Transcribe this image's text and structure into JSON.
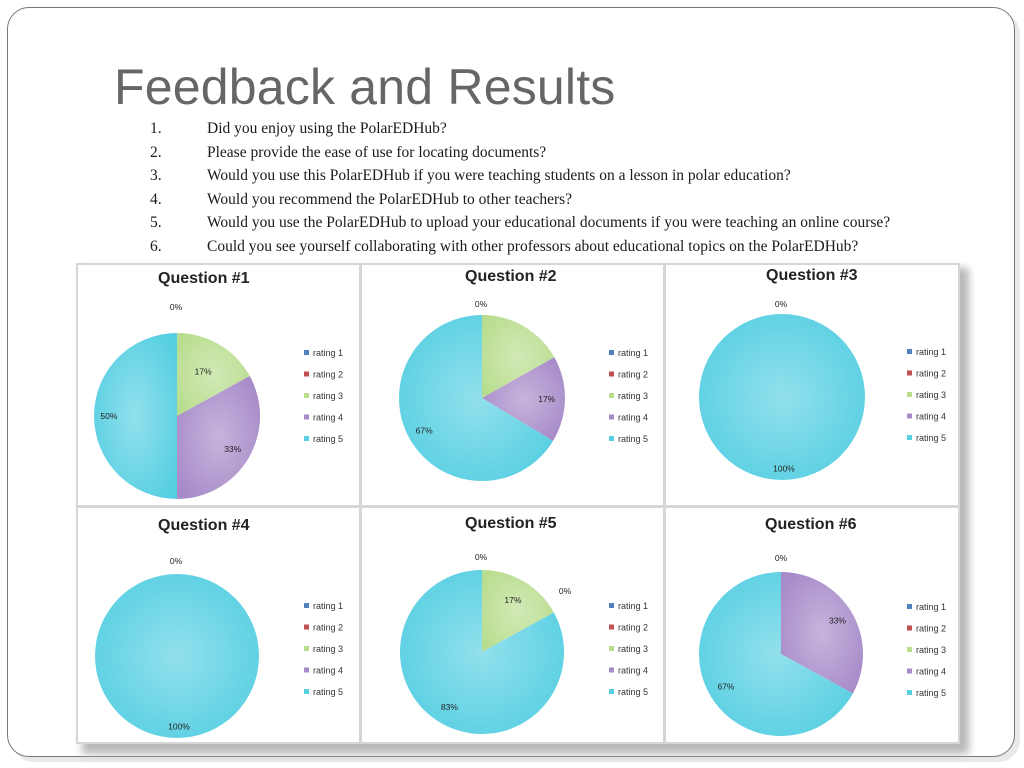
{
  "slide": {
    "title": "Feedback and Results",
    "questions": [
      {
        "num": "1.",
        "text": "Did you enjoy using the PolarEDHub?"
      },
      {
        "num": "2.",
        "text": "Please provide the ease of use for locating documents?"
      },
      {
        "num": "3.",
        "text": "Would you use this PolarEDHub if you were teaching students on a lesson in polar education?"
      },
      {
        "num": "4.",
        "text": "Would you recommend the PolarEDHub to other teachers?"
      },
      {
        "num": "5.",
        "text": "Would you use the PolarEDHub to upload your educational documents if you were teaching an online course?"
      },
      {
        "num": "6.",
        "text": "Could you see yourself collaborating with other professors about educational topics on the PolarEDHub?"
      }
    ]
  },
  "colors": {
    "rating 1": "#4f81bd",
    "rating 2": "#c0504d",
    "rating 3": "#b9dd8f",
    "rating 4": "#a78bc9",
    "rating 5": "#57cfe2"
  },
  "chart_data": [
    {
      "type": "pie",
      "title": "Question #1",
      "categories": [
        "rating 1",
        "rating 2",
        "rating 3",
        "rating 4",
        "rating 5"
      ],
      "values": [
        0,
        0,
        17,
        33,
        50
      ],
      "labels": [
        "",
        "0%",
        "17%",
        "33%",
        "50%"
      ],
      "legend": "right"
    },
    {
      "type": "pie",
      "title": "Question #2",
      "categories": [
        "rating 1",
        "rating 2",
        "rating 3",
        "rating 4",
        "rating 5"
      ],
      "values": [
        0,
        0,
        17,
        17,
        67
      ],
      "labels": [
        "",
        "0%",
        "",
        "17%",
        "67%"
      ],
      "legend": "right"
    },
    {
      "type": "pie",
      "title": "Question #3",
      "categories": [
        "rating 1",
        "rating 2",
        "rating 3",
        "rating 4",
        "rating 5"
      ],
      "values": [
        0,
        0,
        0,
        0,
        100
      ],
      "labels": [
        "",
        "0%",
        "",
        "",
        "100%"
      ],
      "legend": "right"
    },
    {
      "type": "pie",
      "title": "Question #4",
      "categories": [
        "rating 1",
        "rating 2",
        "rating 3",
        "rating 4",
        "rating 5"
      ],
      "values": [
        0,
        0,
        0,
        0,
        100
      ],
      "labels": [
        "",
        "0%",
        "",
        "",
        "100%"
      ],
      "legend": "right"
    },
    {
      "type": "pie",
      "title": "Question #5",
      "categories": [
        "rating 1",
        "rating 2",
        "rating 3",
        "rating 4",
        "rating 5"
      ],
      "values": [
        0,
        0,
        17,
        0,
        83
      ],
      "labels": [
        "",
        "0%",
        "17%",
        "0%",
        "83%"
      ],
      "legend": "right"
    },
    {
      "type": "pie",
      "title": "Question #6",
      "categories": [
        "rating 1",
        "rating 2",
        "rating 3",
        "rating 4",
        "rating 5"
      ],
      "values": [
        0,
        0,
        0,
        33,
        67
      ],
      "labels": [
        "",
        "0%",
        "",
        "33%",
        "67%"
      ],
      "legend": "right"
    }
  ]
}
